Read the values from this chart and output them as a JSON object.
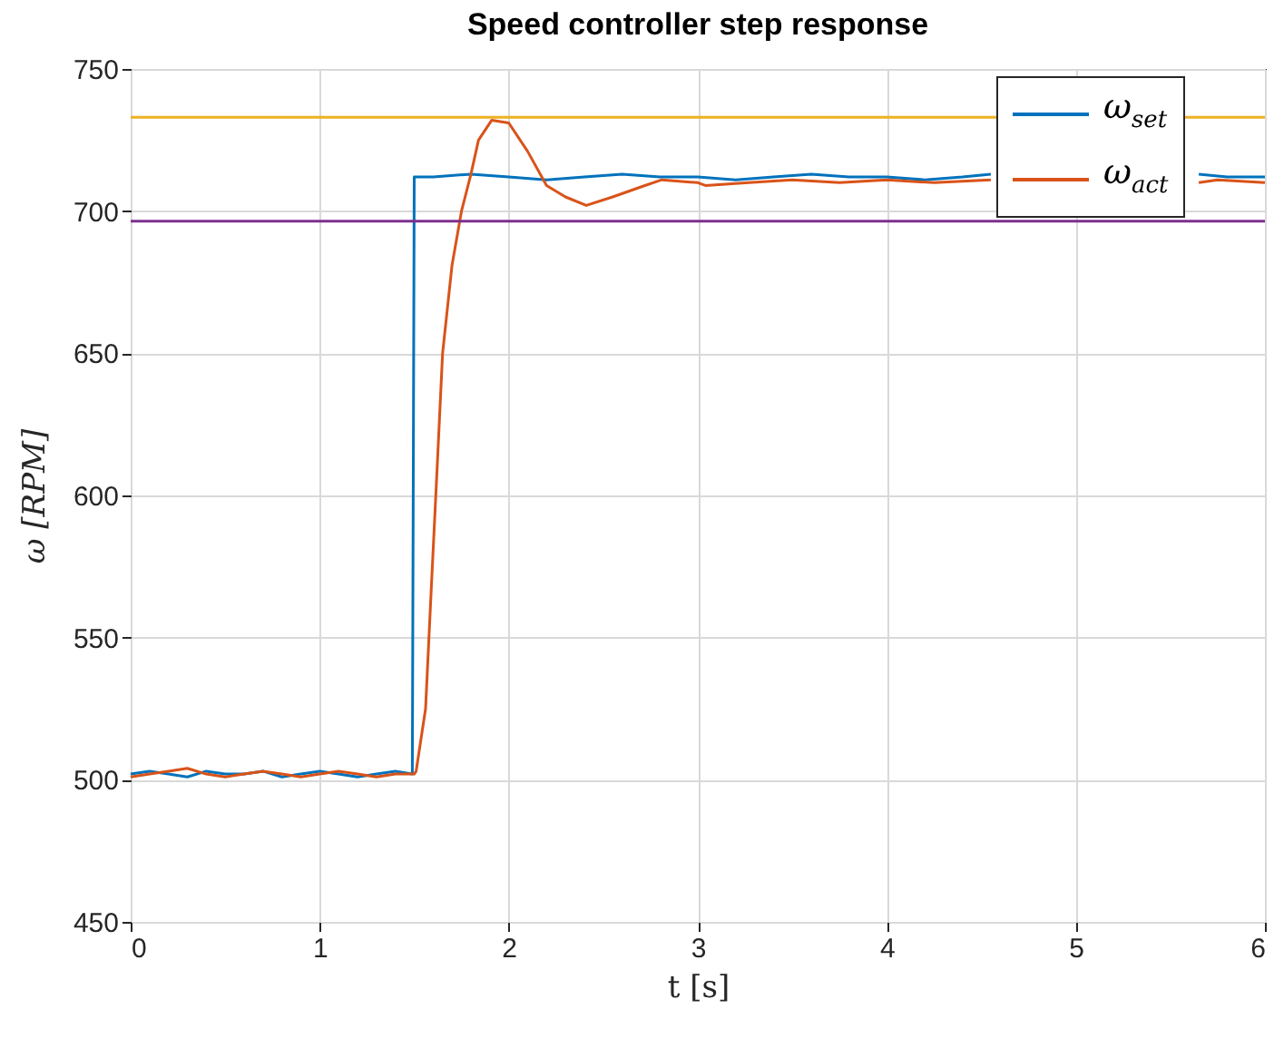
{
  "chart_data": {
    "type": "line",
    "title": "Speed controller step response",
    "xlabel": "t [s]",
    "ylabel": "ω [RPM]",
    "xlim": [
      0,
      6
    ],
    "xticks": [
      0,
      1,
      2,
      3,
      4,
      5,
      6
    ],
    "ylim": [
      450,
      750
    ],
    "yticks": [
      450,
      500,
      550,
      600,
      650,
      700,
      750
    ],
    "grid": true,
    "legend": "top right",
    "ref_lines": [
      {
        "axis": "y",
        "value": 733,
        "color": "#edb120"
      },
      {
        "axis": "y",
        "value": 696.5,
        "color": "#7e2f8e"
      }
    ],
    "series": [
      {
        "name": "ω$_{set}$",
        "color": "#0072bd",
        "x": [
          0,
          0.1,
          0.2,
          0.3,
          0.4,
          0.5,
          0.6,
          0.7,
          0.8,
          0.9,
          1.0,
          1.1,
          1.2,
          1.3,
          1.4,
          1.49,
          1.5,
          1.6,
          1.8,
          2.0,
          2.2,
          2.4,
          2.6,
          2.8,
          3.0,
          3.2,
          3.4,
          3.6,
          3.8,
          4.0,
          4.2,
          4.4,
          4.55,
          4.8,
          5.0,
          5.2,
          5.4,
          5.65,
          5.8,
          6.0
        ],
        "values": [
          502,
          503,
          502,
          501,
          503,
          502,
          502,
          503,
          501,
          502,
          503,
          502,
          501,
          502,
          503,
          502,
          712,
          712,
          713,
          712,
          711,
          712,
          713,
          712,
          712,
          711,
          712,
          713,
          712,
          712,
          711,
          712,
          713,
          null,
          null,
          null,
          null,
          713,
          712,
          712
        ]
      },
      {
        "name": "ω$_{act}$",
        "color": "#d95319",
        "x": [
          0,
          0.1,
          0.2,
          0.3,
          0.4,
          0.5,
          0.6,
          0.7,
          0.8,
          0.9,
          1.0,
          1.1,
          1.2,
          1.3,
          1.4,
          1.5,
          1.51,
          1.56,
          1.59,
          1.62,
          1.65,
          1.7,
          1.75,
          1.8,
          1.84,
          1.91,
          2.0,
          2.1,
          2.2,
          2.3,
          2.41,
          2.55,
          2.72,
          2.81,
          3.0,
          3.04,
          3.27,
          3.5,
          3.75,
          4.0,
          4.25,
          4.55,
          4.75,
          5.0,
          5.25,
          5.5,
          5.65,
          5.75,
          6.0
        ],
        "values": [
          501,
          502,
          503,
          504,
          502,
          501,
          502,
          503,
          502,
          501,
          502,
          503,
          502,
          501,
          502,
          502,
          503,
          525,
          567,
          608,
          650,
          681,
          700,
          713,
          725,
          732,
          731,
          721,
          709,
          705,
          702,
          705,
          709,
          711,
          710,
          709,
          710,
          711,
          710,
          711,
          710,
          711,
          null,
          null,
          null,
          null,
          710,
          711,
          710
        ]
      }
    ]
  }
}
